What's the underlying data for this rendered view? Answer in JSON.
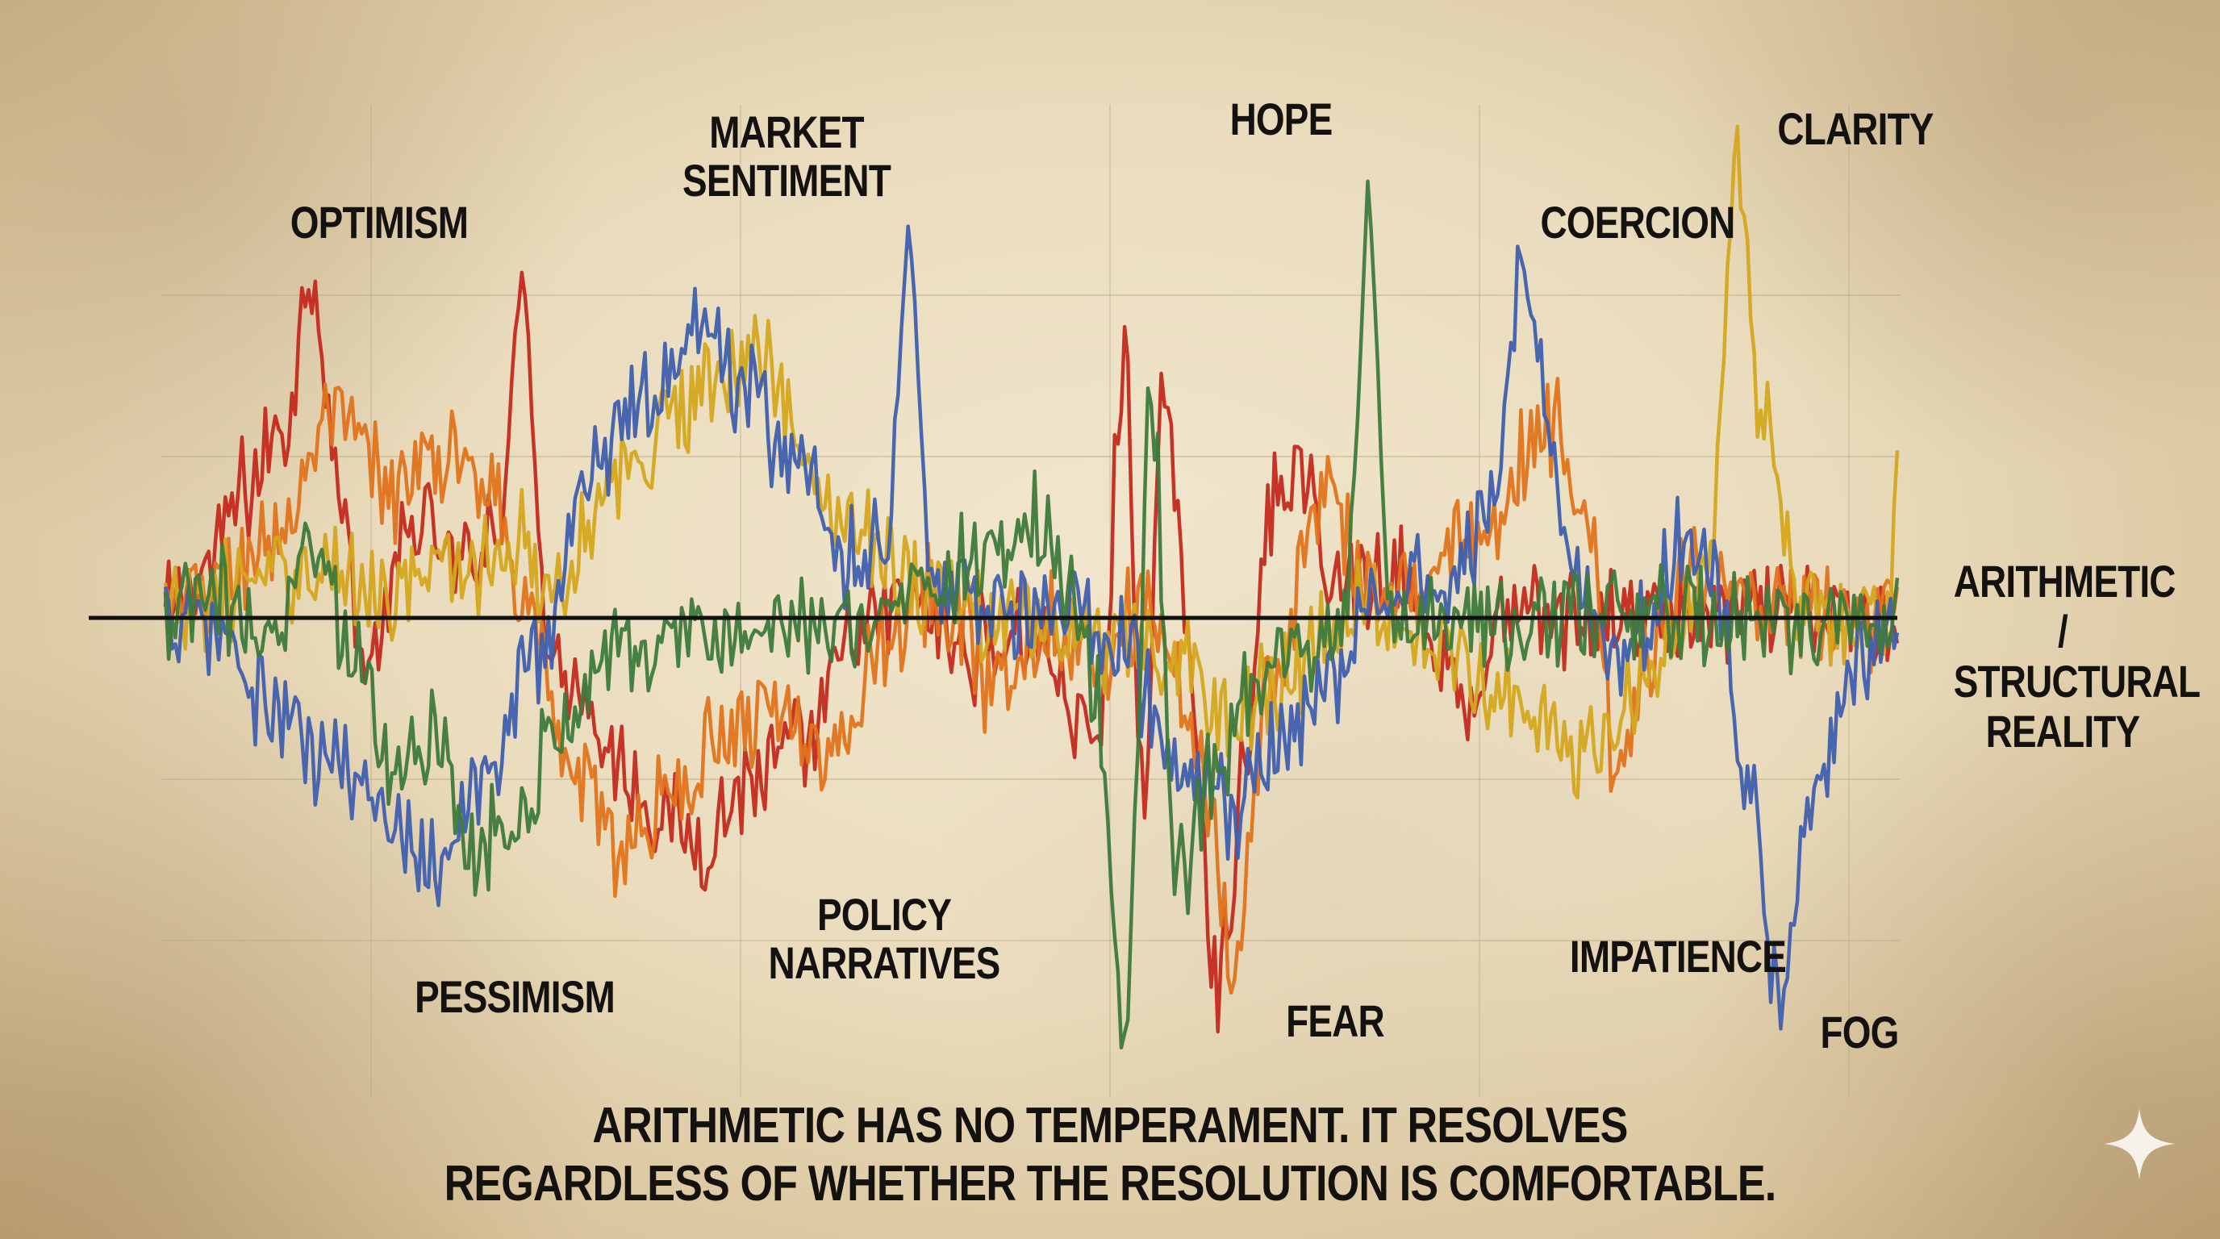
{
  "chart_data": {
    "type": "line",
    "x_domain": [
      0,
      1000
    ],
    "ylim": [
      -2.5,
      2.5
    ],
    "grid": true,
    "reference_line": {
      "value": 0,
      "label": "ARITHMETIC /\nSTRUCTURAL\nREALITY"
    },
    "series": [
      {
        "color": "#c42a1e",
        "anchors": [
          [
            0,
            0
          ],
          [
            30,
            0.3
          ],
          [
            60,
            0.8
          ],
          [
            90,
            1.2
          ],
          [
            110,
            2.2
          ],
          [
            130,
            0.8
          ],
          [
            150,
            -0.3
          ],
          [
            190,
            0.6
          ],
          [
            220,
            0.3
          ],
          [
            260,
            0.7
          ],
          [
            300,
            -0.3
          ],
          [
            340,
            -0.9
          ],
          [
            370,
            -1.2
          ],
          [
            400,
            -1.4
          ],
          [
            440,
            -1.0
          ],
          [
            480,
            -0.8
          ],
          [
            520,
            -0.1
          ],
          [
            560,
            0.1
          ],
          [
            600,
            -0.2
          ],
          [
            650,
            -0.1
          ],
          [
            700,
            -0.8
          ],
          [
            720,
            1.6
          ],
          [
            735,
            -1.2
          ],
          [
            750,
            1.5
          ],
          [
            770,
            -0.4
          ],
          [
            790,
            -2.3
          ],
          [
            810,
            -1.0
          ],
          [
            830,
            0.7
          ],
          [
            850,
            0.9
          ],
          [
            880,
            0.2
          ],
          [
            920,
            0.3
          ],
          [
            960,
            -0.2
          ],
          [
            980,
            -0.6
          ],
          [
            1000,
            0.0
          ]
        ],
        "peaks": [
          [
            268,
            2.2
          ]
        ]
      },
      {
        "color": "#e0731c",
        "anchors": [
          [
            0,
            0
          ],
          [
            40,
            0.2
          ],
          [
            80,
            0.5
          ],
          [
            130,
            1.2
          ],
          [
            170,
            0.8
          ],
          [
            210,
            1.0
          ],
          [
            240,
            0.9
          ],
          [
            270,
            0.2
          ],
          [
            300,
            -0.9
          ],
          [
            340,
            -1.4
          ],
          [
            380,
            -1.1
          ],
          [
            420,
            -0.7
          ],
          [
            460,
            -0.5
          ],
          [
            500,
            -0.9
          ],
          [
            540,
            -0.1
          ],
          [
            580,
            0.2
          ],
          [
            620,
            -0.4
          ],
          [
            660,
            0.0
          ],
          [
            700,
            -0.2
          ],
          [
            740,
            0.1
          ],
          [
            780,
            -1.0
          ],
          [
            800,
            -2.1
          ],
          [
            830,
            -0.4
          ],
          [
            870,
            0.8
          ],
          [
            900,
            0.3
          ],
          [
            940,
            0.2
          ],
          [
            960,
            0.5
          ],
          [
            990,
            0.4
          ],
          [
            1020,
            1.0
          ],
          [
            1040,
            1.2
          ],
          [
            1070,
            0.4
          ],
          [
            1090,
            -1.1
          ],
          [
            1110,
            -0.3
          ],
          [
            1150,
            0.3
          ],
          [
            1200,
            0.0
          ]
        ],
        "peaks": []
      },
      {
        "color": "#d4a61f",
        "anchors": [
          [
            0,
            0
          ],
          [
            60,
            0.2
          ],
          [
            110,
            0.3
          ],
          [
            170,
            0.2
          ],
          [
            230,
            0.3
          ],
          [
            260,
            0.5
          ],
          [
            290,
            0.2
          ],
          [
            320,
            0.6
          ],
          [
            350,
            0.9
          ],
          [
            380,
            1.3
          ],
          [
            410,
            1.5
          ],
          [
            450,
            1.6
          ],
          [
            490,
            0.8
          ],
          [
            530,
            0.5
          ],
          [
            570,
            0.2
          ],
          [
            620,
            0.0
          ],
          [
            670,
            -0.1
          ],
          [
            720,
            -0.2
          ],
          [
            760,
            -0.3
          ],
          [
            800,
            -0.6
          ],
          [
            850,
            -0.3
          ],
          [
            900,
            0.1
          ],
          [
            940,
            -0.1
          ],
          [
            980,
            -0.3
          ],
          [
            1020,
            -0.5
          ],
          [
            1060,
            -0.9
          ],
          [
            1090,
            -0.6
          ],
          [
            1110,
            -0.4
          ],
          [
            1140,
            0.0
          ],
          [
            1160,
            0.4
          ],
          [
            1180,
            2.8
          ],
          [
            1200,
            1.2
          ],
          [
            1230,
            0.1
          ],
          [
            1260,
            0.0
          ]
        ],
        "peaks": [
          [
            1310,
            2.8
          ]
        ]
      },
      {
        "color": "#3f5fae",
        "anchors": [
          [
            0,
            0
          ],
          [
            40,
            -0.1
          ],
          [
            80,
            -0.6
          ],
          [
            120,
            -0.9
          ],
          [
            160,
            -1.1
          ],
          [
            200,
            -1.5
          ],
          [
            240,
            -1.0
          ],
          [
            280,
            -0.2
          ],
          [
            320,
            0.9
          ],
          [
            360,
            1.4
          ],
          [
            400,
            1.8
          ],
          [
            430,
            1.5
          ],
          [
            470,
            1.0
          ],
          [
            510,
            0.4
          ],
          [
            550,
            0.5
          ],
          [
            590,
            0.2
          ],
          [
            630,
            0.0
          ],
          [
            670,
            0.1
          ],
          [
            720,
            -0.2
          ],
          [
            760,
            -1.0
          ],
          [
            800,
            -1.2
          ],
          [
            840,
            -0.8
          ],
          [
            880,
            -0.3
          ],
          [
            920,
            0.2
          ],
          [
            960,
            0.3
          ],
          [
            990,
            0.6
          ],
          [
            1020,
            2.1
          ],
          [
            1050,
            0.6
          ],
          [
            1080,
            -0.2
          ],
          [
            1110,
            -0.1
          ],
          [
            1140,
            0.5
          ],
          [
            1160,
            0.4
          ],
          [
            1190,
            -1.1
          ],
          [
            1210,
            -2.3
          ],
          [
            1240,
            -1.0
          ],
          [
            1270,
            -0.2
          ],
          [
            1300,
            0.0
          ]
        ],
        "peaks": [
          [
            558,
            2.5
          ]
        ]
      },
      {
        "color": "#3e7a3c",
        "anchors": [
          [
            0,
            0
          ],
          [
            40,
            0.1
          ],
          [
            80,
            -0.2
          ],
          [
            110,
            0.6
          ],
          [
            140,
            -0.2
          ],
          [
            170,
            -0.9
          ],
          [
            200,
            -0.7
          ],
          [
            230,
            -1.4
          ],
          [
            260,
            -1.3
          ],
          [
            290,
            -0.8
          ],
          [
            330,
            -0.2
          ],
          [
            370,
            -0.2
          ],
          [
            420,
            -0.1
          ],
          [
            470,
            -0.1
          ],
          [
            520,
            0.0
          ],
          [
            570,
            0.2
          ],
          [
            620,
            0.4
          ],
          [
            650,
            0.6
          ],
          [
            680,
            0.2
          ],
          [
            700,
            -0.5
          ],
          [
            720,
            -2.7
          ],
          [
            740,
            1.3
          ],
          [
            760,
            -1.6
          ],
          [
            790,
            -0.9
          ],
          [
            830,
            -0.2
          ],
          [
            900,
            0.0
          ],
          [
            1000,
            0.0
          ]
        ],
        "peaks": [
          [
            903,
            2.8
          ]
        ]
      }
    ]
  },
  "annotations": [
    {
      "key": "optimism",
      "text": "OPTIMISM"
    },
    {
      "key": "market",
      "text": "MARKET\nSENTIMENT"
    },
    {
      "key": "hope",
      "text": "HOPE"
    },
    {
      "key": "coercion",
      "text": "COERCION"
    },
    {
      "key": "clarity",
      "text": "CLARITY"
    },
    {
      "key": "pessimism",
      "text": "PESSIMISM"
    },
    {
      "key": "policy",
      "text": "POLICY\nNARRATIVES"
    },
    {
      "key": "fear",
      "text": "FEAR"
    },
    {
      "key": "impatience",
      "text": "IMPATIENCE"
    },
    {
      "key": "fog",
      "text": "FOG"
    }
  ],
  "caption": "ARITHMETIC HAS NO TEMPERAMENT. IT RESOLVES\nREGARDLESS OF WHETHER THE RESOLUTION IS COMFORTABLE.",
  "sparkle_icon": "sparkle-icon"
}
